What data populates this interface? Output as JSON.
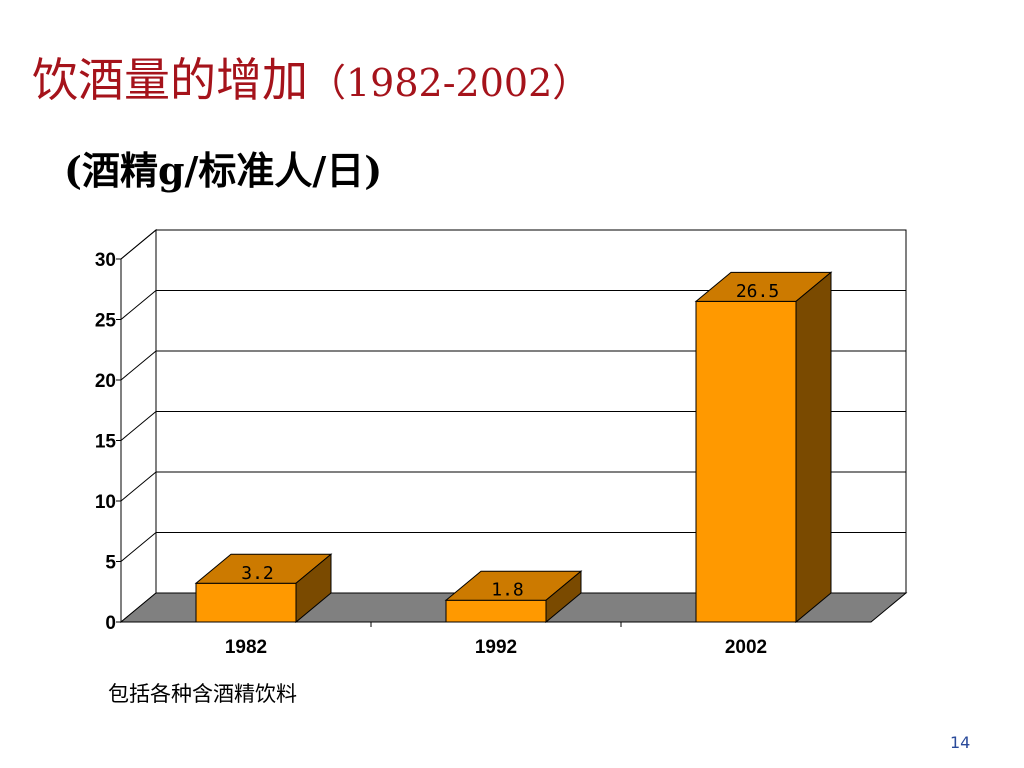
{
  "slide": {
    "title_main": "饮酒量的增加",
    "title_years": "（1982-2002）",
    "subtitle": "(酒精g/标准人/日)",
    "footnote": "包括各种含酒精饮料",
    "page_number": "14"
  },
  "colors": {
    "title": "#a5131b",
    "bar_front": "#ff9900",
    "bar_top": "#cc7a00",
    "bar_side": "#7a4a00",
    "floor": "#808080"
  },
  "chart_data": {
    "type": "bar",
    "style": "3d",
    "categories": [
      "1982",
      "1992",
      "2002"
    ],
    "values": [
      3.2,
      1.8,
      26.5
    ],
    "data_labels": [
      "3.2",
      "1.8",
      "26.5"
    ],
    "ylim": [
      0,
      30
    ],
    "yticks": [
      0,
      5,
      10,
      15,
      20,
      25,
      30
    ],
    "grid": true,
    "legend": "none"
  }
}
